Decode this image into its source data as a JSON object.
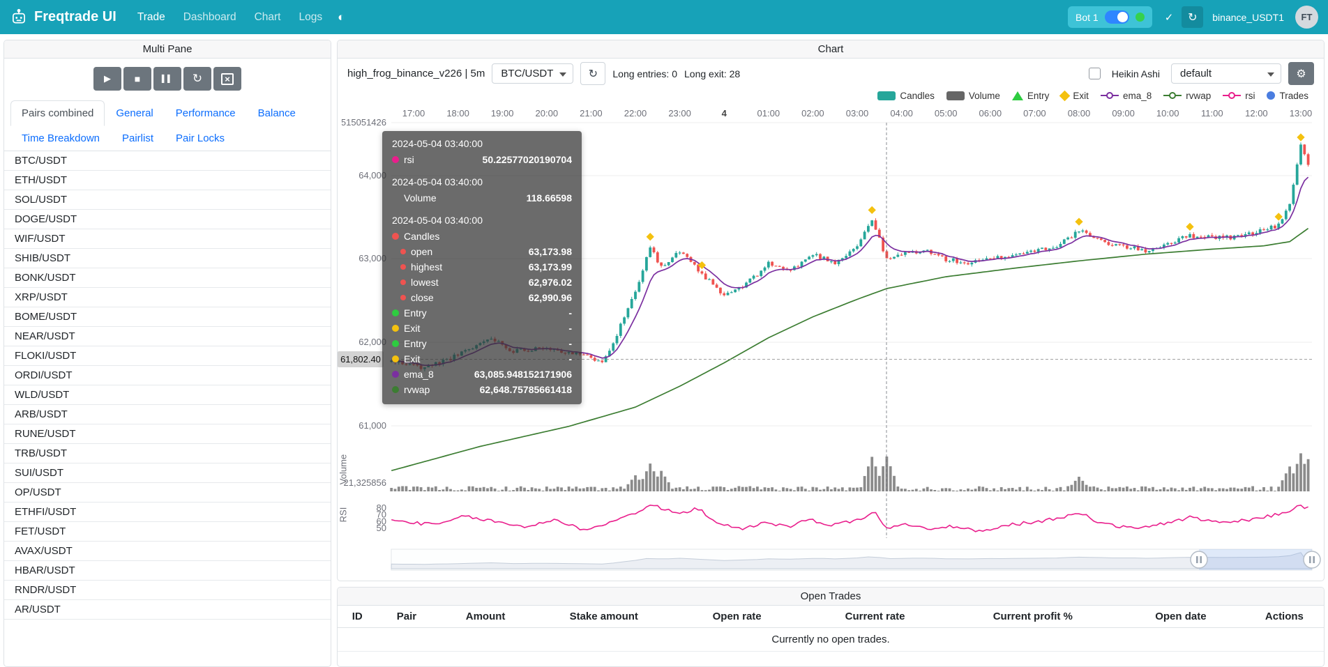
{
  "navbar": {
    "brand": "Freqtrade UI",
    "nav_items": [
      {
        "label": "Trade",
        "active": true
      },
      {
        "label": "Dashboard",
        "active": false
      },
      {
        "label": "Chart",
        "active": false
      },
      {
        "label": "Logs",
        "active": false
      }
    ],
    "bot_badge_label": "Bot 1",
    "bot_instance": "binance_USDT1",
    "avatar_initials": "FT"
  },
  "multi_pane": {
    "title": "Multi Pane",
    "controls": [
      {
        "name": "start-button",
        "icon": "play-icon"
      },
      {
        "name": "stop-button",
        "icon": "stop-icon"
      },
      {
        "name": "stop-buy-button",
        "icon": "pause-icon"
      },
      {
        "name": "reload-config-button",
        "icon": "reload-icon"
      },
      {
        "name": "force-exit-button",
        "icon": "close-box-icon"
      }
    ],
    "tabs": [
      {
        "label": "Pairs combined",
        "active": true
      },
      {
        "label": "General",
        "active": false
      },
      {
        "label": "Performance",
        "active": false
      },
      {
        "label": "Balance",
        "active": false
      },
      {
        "label": "Time Breakdown",
        "active": false
      },
      {
        "label": "Pairlist",
        "active": false
      },
      {
        "label": "Pair Locks",
        "active": false
      }
    ],
    "pairs": [
      "BTC/USDT",
      "ETH/USDT",
      "SOL/USDT",
      "DOGE/USDT",
      "WIF/USDT",
      "SHIB/USDT",
      "BONK/USDT",
      "XRP/USDT",
      "BOME/USDT",
      "NEAR/USDT",
      "FLOKI/USDT",
      "ORDI/USDT",
      "WLD/USDT",
      "ARB/USDT",
      "RUNE/USDT",
      "TRB/USDT",
      "SUI/USDT",
      "OP/USDT",
      "ETHFI/USDT",
      "FET/USDT",
      "AVAX/USDT",
      "HBAR/USDT",
      "RNDR/USDT",
      "AR/USDT"
    ]
  },
  "chart_card": {
    "title": "Chart",
    "strategy_label": "high_frog_binance_v226 | 5m",
    "pair_select_value": "BTC/USDT",
    "long_entries_label": "Long entries: 0",
    "long_exit_label": "Long exit: 28",
    "heikin_ashi_label": "Heikin Ashi",
    "plot_config_value": "default",
    "legend": [
      {
        "label": "Candles",
        "icon": "rect",
        "color": "#26a69a"
      },
      {
        "label": "Volume",
        "icon": "rect",
        "color": "#666666"
      },
      {
        "label": "Entry",
        "icon": "triangle",
        "color": "#2ecc40"
      },
      {
        "label": "Exit",
        "icon": "diamond",
        "color": "#f4c10f"
      },
      {
        "label": "ema_8",
        "icon": "line",
        "color": "#7b2fa0"
      },
      {
        "label": "rvwap",
        "icon": "line",
        "color": "#3c7d32"
      },
      {
        "label": "rsi",
        "icon": "line",
        "color": "#e91e8c"
      },
      {
        "label": "Trades",
        "icon": "circle",
        "color": "#4a7de0"
      }
    ],
    "axis": {
      "price_labels": [
        "515051426",
        "64,000",
        "63,000",
        "62,000",
        "61,000"
      ],
      "x_labels": [
        "17:00",
        "18:00",
        "19:00",
        "20:00",
        "21:00",
        "22:00",
        "23:00",
        "4",
        "01:00",
        "02:00",
        "03:00",
        "04:00",
        "05:00",
        "06:00",
        "07:00",
        "08:00",
        "09:00",
        "10:00",
        "11:00",
        "12:00",
        "13:00"
      ],
      "volume_label": "21,325856",
      "rsi_labels": [
        "80",
        "70",
        "60",
        "50"
      ],
      "volume_axis_title": "Volume",
      "rsi_axis_title": "RSI"
    },
    "price_marker": "61,802.40",
    "tooltip": {
      "sections": [
        {
          "time": "2024-05-04 03:40:00",
          "rows": [
            {
              "marker": "#e91e8c",
              "label": "rsi",
              "value": "50.22577020190704"
            }
          ]
        },
        {
          "time": "2024-05-04 03:40:00",
          "rows": [
            {
              "marker": "",
              "label": "Volume",
              "value": "118.66598"
            }
          ]
        },
        {
          "time": "2024-05-04 03:40:00",
          "rows": [
            {
              "marker": "#ef5350",
              "label": "Candles",
              "value": ""
            },
            {
              "marker": "#ef5350",
              "label": "open",
              "value": "63,173.98",
              "cls": "indent"
            },
            {
              "marker": "#ef5350",
              "label": "highest",
              "value": "63,173.99",
              "cls": "indent"
            },
            {
              "marker": "#ef5350",
              "label": "lowest",
              "value": "62,976.02",
              "cls": "indent"
            },
            {
              "marker": "#ef5350",
              "label": "close",
              "value": "62,990.96",
              "cls": "indent"
            },
            {
              "marker": "#2ecc40",
              "label": "Entry",
              "value": "-"
            },
            {
              "marker": "#f4c10f",
              "label": "Exit",
              "value": "-"
            },
            {
              "marker": "#2ecc40",
              "label": "Entry",
              "value": "-"
            },
            {
              "marker": "#f4c10f",
              "label": "Exit",
              "value": "-"
            },
            {
              "marker": "#7b2fa0",
              "label": "ema_8",
              "value": "63,085.948152171906"
            },
            {
              "marker": "#3c7d32",
              "label": "rvwap",
              "value": "62,648.75785661418"
            }
          ]
        }
      ]
    }
  },
  "chart_data": {
    "type": "candlestick",
    "pair": "BTC/USDT",
    "timeframe": "5m",
    "crosshair_time": "2024-05-04 03:40:00",
    "crosshair_candle": {
      "open": 63173.98,
      "high": 63173.99,
      "low": 62976.02,
      "close": 62990.96,
      "volume": 118.66598,
      "rsi": 50.22577020190704,
      "ema_8": 63085.948152171906,
      "rvwap": 62648.75785661418
    },
    "price_marker_value": 61802.4,
    "price_anchors": [
      [
        -30,
        61780
      ],
      [
        15,
        61700
      ],
      [
        60,
        61850
      ],
      [
        105,
        62060
      ],
      [
        135,
        61900
      ],
      [
        180,
        61950
      ],
      [
        225,
        61850
      ],
      [
        255,
        61790
      ],
      [
        270,
        62000
      ],
      [
        300,
        62620
      ],
      [
        320,
        63160
      ],
      [
        335,
        62900
      ],
      [
        360,
        63090
      ],
      [
        390,
        62820
      ],
      [
        420,
        62560
      ],
      [
        450,
        62700
      ],
      [
        480,
        62950
      ],
      [
        510,
        62860
      ],
      [
        540,
        63060
      ],
      [
        570,
        62960
      ],
      [
        600,
        63160
      ],
      [
        620,
        63480
      ],
      [
        640,
        62990
      ],
      [
        660,
        63060
      ],
      [
        690,
        63110
      ],
      [
        720,
        63000
      ],
      [
        750,
        62950
      ],
      [
        810,
        63050
      ],
      [
        870,
        63160
      ],
      [
        900,
        63340
      ],
      [
        930,
        63210
      ],
      [
        990,
        63100
      ],
      [
        1050,
        63280
      ],
      [
        1110,
        63260
      ],
      [
        1170,
        63400
      ],
      [
        1185,
        63680
      ],
      [
        1200,
        64350
      ],
      [
        1215,
        64050
      ]
    ],
    "rvwap_anchors": [
      [
        -30,
        60470
      ],
      [
        90,
        60760
      ],
      [
        210,
        61000
      ],
      [
        300,
        61230
      ],
      [
        360,
        61480
      ],
      [
        420,
        61760
      ],
      [
        480,
        62060
      ],
      [
        540,
        62310
      ],
      [
        600,
        62520
      ],
      [
        640,
        62649
      ],
      [
        720,
        62790
      ],
      [
        810,
        62890
      ],
      [
        900,
        62980
      ],
      [
        990,
        63060
      ],
      [
        1080,
        63120
      ],
      [
        1150,
        63160
      ],
      [
        1185,
        63210
      ],
      [
        1215,
        63400
      ]
    ],
    "rsi_anchors": [
      [
        -30,
        62
      ],
      [
        30,
        55
      ],
      [
        70,
        68
      ],
      [
        110,
        60
      ],
      [
        150,
        52
      ],
      [
        190,
        63
      ],
      [
        230,
        48
      ],
      [
        270,
        60
      ],
      [
        305,
        76
      ],
      [
        325,
        84
      ],
      [
        355,
        72
      ],
      [
        385,
        79
      ],
      [
        415,
        56
      ],
      [
        445,
        48
      ],
      [
        475,
        60
      ],
      [
        505,
        52
      ],
      [
        535,
        63
      ],
      [
        565,
        55
      ],
      [
        595,
        61
      ],
      [
        625,
        73
      ],
      [
        640,
        50
      ],
      [
        670,
        56
      ],
      [
        700,
        48
      ],
      [
        730,
        53
      ],
      [
        770,
        45
      ],
      [
        810,
        56
      ],
      [
        850,
        60
      ],
      [
        900,
        73
      ],
      [
        930,
        58
      ],
      [
        970,
        50
      ],
      [
        1010,
        56
      ],
      [
        1050,
        66
      ],
      [
        1090,
        58
      ],
      [
        1130,
        62
      ],
      [
        1170,
        71
      ],
      [
        1200,
        83
      ],
      [
        1215,
        79
      ]
    ],
    "volume_spikes": [
      [
        300,
        55
      ],
      [
        320,
        95
      ],
      [
        335,
        70
      ],
      [
        620,
        118
      ],
      [
        640,
        119
      ],
      [
        900,
        50
      ],
      [
        1185,
        85
      ],
      [
        1200,
        130
      ],
      [
        1210,
        110
      ]
    ],
    "exit_markers": [
      320,
      390,
      620,
      900,
      1050,
      1170,
      1200
    ],
    "colors": {
      "up": "#26a69a",
      "down": "#ef5350",
      "volume": "#7e7e7e",
      "ema_8": "#7b2fa0",
      "rvwap": "#3c7d32",
      "rsi": "#e91e8c",
      "exit": "#f4c10f"
    }
  },
  "open_trades": {
    "title": "Open Trades",
    "columns": [
      "ID",
      "Pair",
      "Amount",
      "Stake amount",
      "Open rate",
      "Current rate",
      "Current profit %",
      "Open date",
      "Actions"
    ],
    "empty_message": "Currently no open trades."
  }
}
